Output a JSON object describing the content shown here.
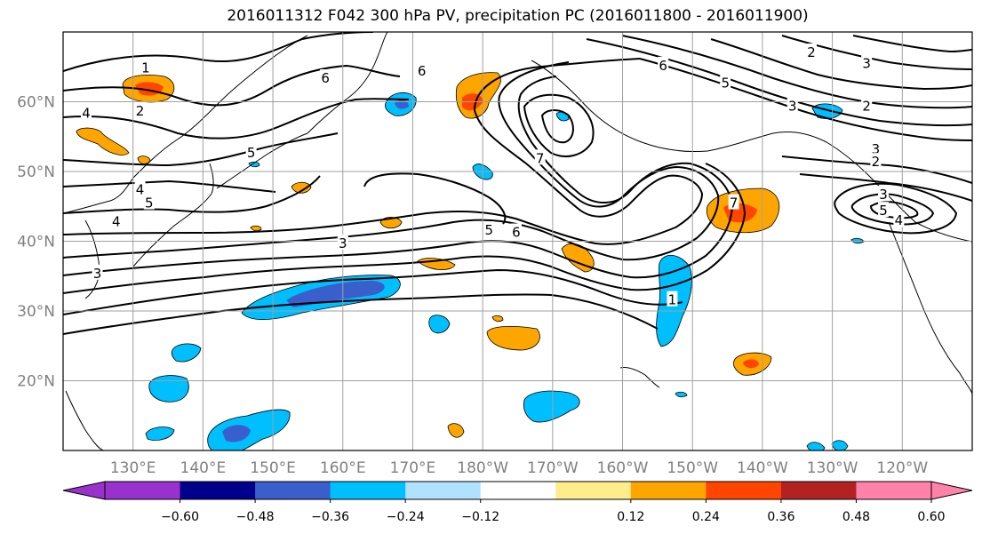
{
  "chart_data": {
    "type": "map",
    "title": "2016011312 F042 300 hPa PV, precipitation PC (2016011800 - 2016011900)",
    "xlim": [
      120,
      250
    ],
    "ylim": [
      10,
      70
    ],
    "lon_ticks": [
      {
        "value": 130,
        "label": "130°E"
      },
      {
        "value": 140,
        "label": "140°E"
      },
      {
        "value": 150,
        "label": "150°E"
      },
      {
        "value": 160,
        "label": "160°E"
      },
      {
        "value": 170,
        "label": "170°E"
      },
      {
        "value": 180,
        "label": "180°W"
      },
      {
        "value": 190,
        "label": "170°W"
      },
      {
        "value": 200,
        "label": "160°W"
      },
      {
        "value": 210,
        "label": "150°W"
      },
      {
        "value": 220,
        "label": "140°W"
      },
      {
        "value": 230,
        "label": "130°W"
      },
      {
        "value": 240,
        "label": "120°W"
      }
    ],
    "lat_ticks": [
      {
        "value": 20,
        "label": "20°N"
      },
      {
        "value": 30,
        "label": "30°N"
      },
      {
        "value": 40,
        "label": "40°N"
      },
      {
        "value": 50,
        "label": "50°N"
      },
      {
        "value": 60,
        "label": "60°N"
      }
    ],
    "grid": true,
    "colorbar": {
      "orientation": "horizontal",
      "extend": "both",
      "colors": [
        "#9932cc",
        "#00008b",
        "#3a5fcd",
        "#00bfff",
        "#b0e2ff",
        "#ffffff",
        "#ffec8b",
        "#ffa500",
        "#ff4500",
        "#b22222",
        "#ff82ab"
      ],
      "tick_labels": [
        "−0.60",
        "−0.48",
        "−0.36",
        "−0.24",
        "−0.12",
        "0.12",
        "0.24",
        "0.36",
        "0.48",
        "0.60"
      ]
    },
    "pv_contour_labels": [
      {
        "text": "1",
        "lon": 131.8,
        "lat": 65.0
      },
      {
        "text": "6",
        "lon": 157.5,
        "lat": 63.5
      },
      {
        "text": "6",
        "lon": 171.3,
        "lat": 64.5
      },
      {
        "text": "6",
        "lon": 205.8,
        "lat": 65.3
      },
      {
        "text": "5",
        "lon": 214.7,
        "lat": 62.8
      },
      {
        "text": "2",
        "lon": 227.0,
        "lat": 67.2
      },
      {
        "text": "3",
        "lon": 234.9,
        "lat": 65.6
      },
      {
        "text": "4",
        "lon": 123.3,
        "lat": 58.5
      },
      {
        "text": "2",
        "lon": 131.0,
        "lat": 58.8
      },
      {
        "text": "5",
        "lon": 146.9,
        "lat": 52.8
      },
      {
        "text": "4",
        "lon": 131.0,
        "lat": 47.5
      },
      {
        "text": "5",
        "lon": 132.3,
        "lat": 45.6
      },
      {
        "text": "4",
        "lon": 127.6,
        "lat": 42.9
      },
      {
        "text": "3",
        "lon": 160.0,
        "lat": 39.8
      },
      {
        "text": "5",
        "lon": 180.9,
        "lat": 41.7
      },
      {
        "text": "6",
        "lon": 184.8,
        "lat": 41.4
      },
      {
        "text": "7",
        "lon": 188.2,
        "lat": 52.0
      },
      {
        "text": "7",
        "lon": 215.9,
        "lat": 45.6
      },
      {
        "text": "1",
        "lon": 207.1,
        "lat": 31.7
      },
      {
        "text": "3",
        "lon": 224.3,
        "lat": 59.5
      },
      {
        "text": "2",
        "lon": 234.9,
        "lat": 59.5
      },
      {
        "text": "3",
        "lon": 236.2,
        "lat": 53.3
      },
      {
        "text": "2",
        "lon": 236.2,
        "lat": 51.5
      },
      {
        "text": "3",
        "lon": 237.3,
        "lat": 46.8
      },
      {
        "text": "5",
        "lon": 237.3,
        "lat": 44.5
      },
      {
        "text": "4",
        "lon": 239.5,
        "lat": 43.1
      },
      {
        "text": "3",
        "lon": 124.9,
        "lat": 35.5
      }
    ]
  }
}
